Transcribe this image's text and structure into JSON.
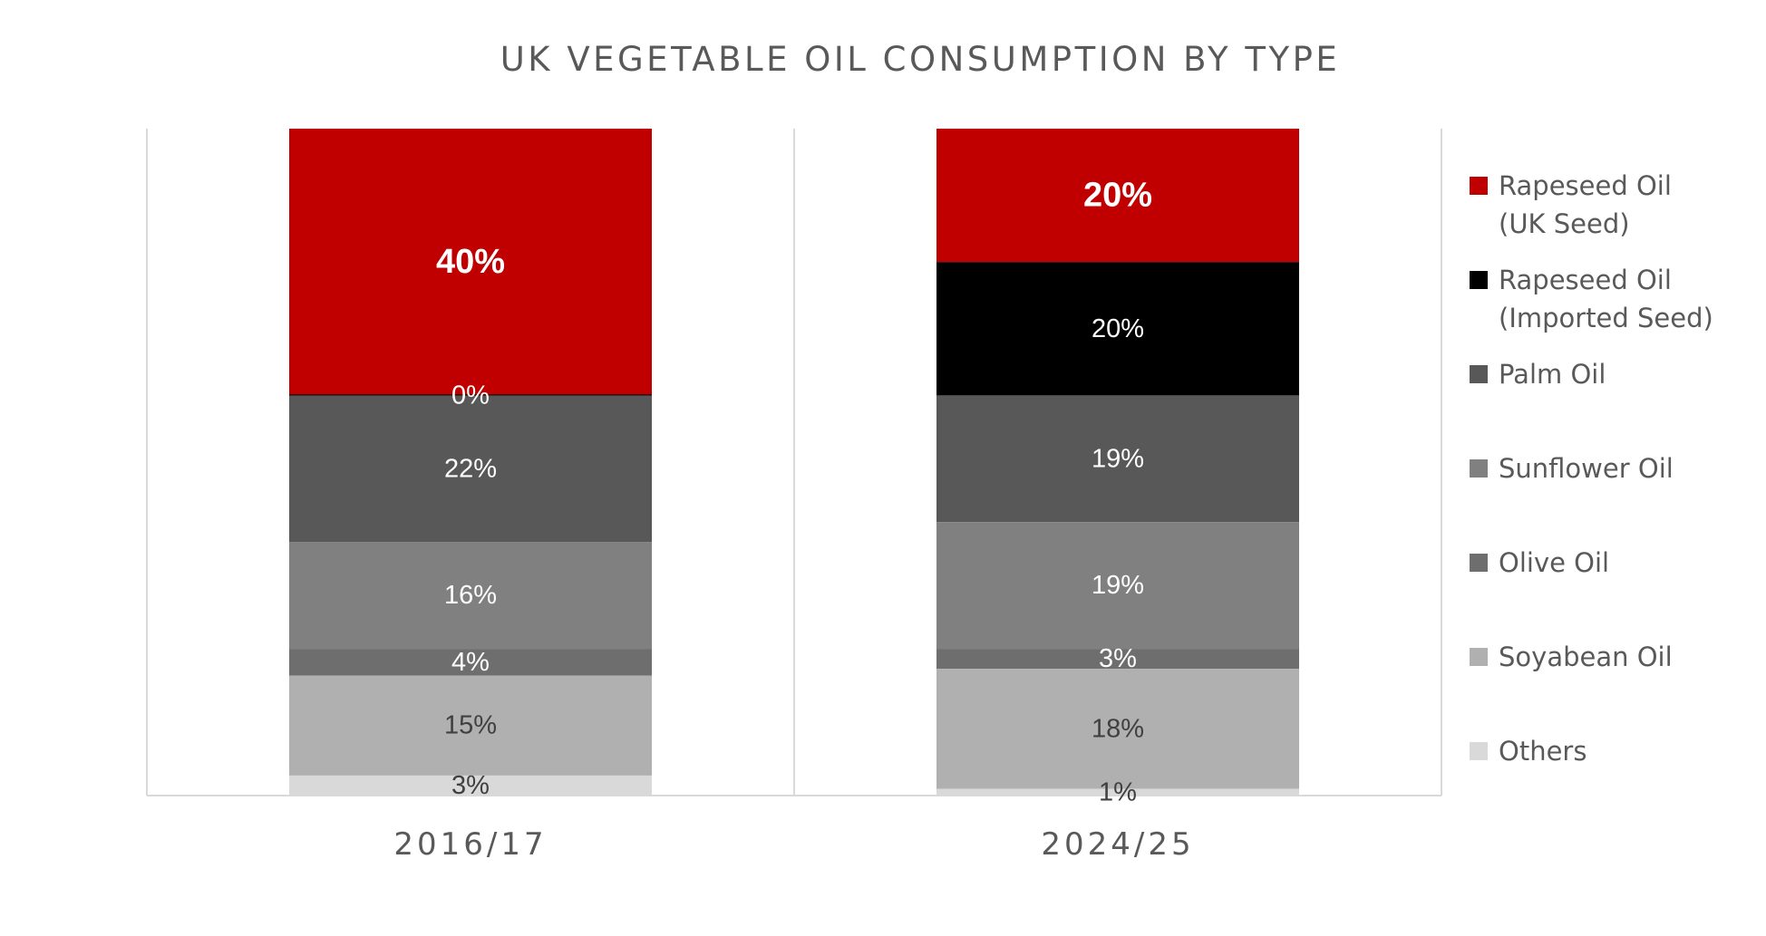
{
  "chart_data": {
    "type": "bar",
    "stacked": true,
    "percent_stacked": true,
    "title": "UK VEGETABLE OIL CONSUMPTION BY TYPE",
    "categories": [
      "2016/17",
      "2024/25"
    ],
    "series": [
      {
        "name": "Rapeseed Oil (UK Seed)",
        "legend_lines": [
          "Rapeseed Oil",
          "(UK Seed)"
        ],
        "color": "#c00000",
        "label_color": "#ffffff",
        "label_bold": true,
        "values": [
          40,
          20
        ]
      },
      {
        "name": "Rapeseed Oil (Imported Seed)",
        "legend_lines": [
          "Rapeseed Oil",
          "(Imported Seed)"
        ],
        "color": "#000000",
        "label_color": "#ffffff",
        "label_bold": false,
        "values": [
          0,
          20
        ]
      },
      {
        "name": "Palm Oil",
        "legend_lines": [
          "Palm Oil"
        ],
        "color": "#585858",
        "label_color": "#ffffff",
        "label_bold": false,
        "values": [
          22,
          19
        ]
      },
      {
        "name": "Sunflower Oil",
        "legend_lines": [
          "Sunflower Oil"
        ],
        "color": "#808080",
        "label_color": "#ffffff",
        "label_bold": false,
        "values": [
          16,
          19
        ]
      },
      {
        "name": "Olive Oil",
        "legend_lines": [
          "Olive Oil"
        ],
        "color": "#6e6e6e",
        "label_color": "#ffffff",
        "label_bold": false,
        "values": [
          4,
          3
        ]
      },
      {
        "name": "Soyabean Oil",
        "legend_lines": [
          "Soyabean Oil"
        ],
        "color": "#b0b0b0",
        "label_color": "#404040",
        "label_bold": false,
        "values": [
          15,
          18
        ]
      },
      {
        "name": "Others",
        "legend_lines": [
          "Others"
        ],
        "color": "#d9d9d9",
        "label_color": "#404040",
        "label_bold": false,
        "values": [
          3,
          1
        ]
      }
    ],
    "data_labels": [
      [
        "40%",
        "20%"
      ],
      [
        "0%",
        "20%"
      ],
      [
        "22%",
        "19%"
      ],
      [
        "16%",
        "19%"
      ],
      [
        "4%",
        "3%"
      ],
      [
        "15%",
        "18%"
      ],
      [
        "3%",
        "1%"
      ]
    ],
    "ylim": [
      0,
      100
    ],
    "xlabel": "",
    "ylabel": "",
    "grid": false,
    "legend_position": "right"
  }
}
